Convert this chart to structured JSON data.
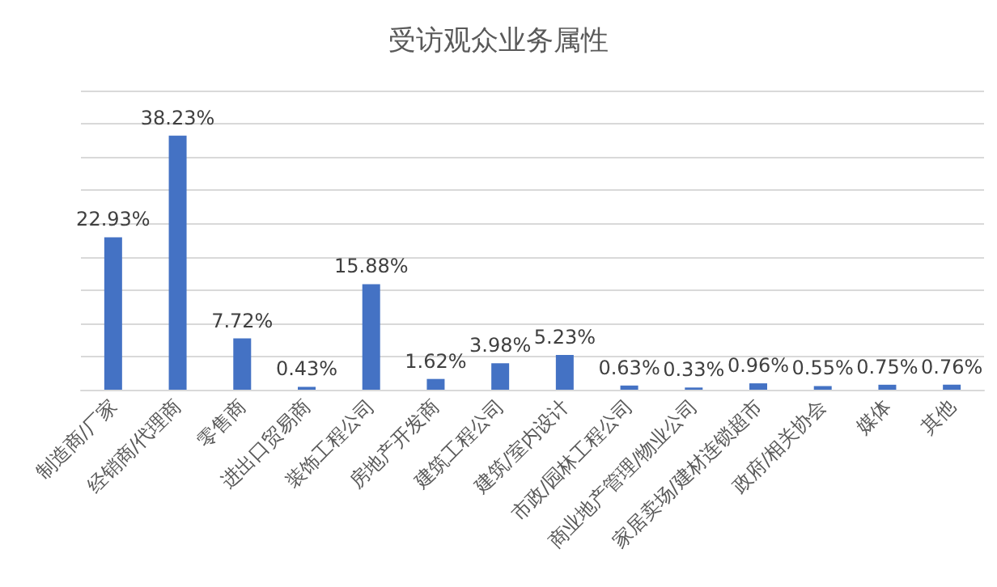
{
  "chart_data": {
    "type": "bar",
    "title": "受访观众业务属性",
    "categories": [
      "制造商/厂家",
      "经销商/代理商",
      "零售商",
      "进出口贸易商",
      "装饰工程公司",
      "房地产开发商",
      "建筑工程公司",
      "建筑/室内设计",
      "市政/园林工程公司",
      "商业地产管理/物业公司",
      "家居卖场/建材连锁超市",
      "政府/相关协会",
      "媒体",
      "其他"
    ],
    "values": [
      22.93,
      38.23,
      7.72,
      0.43,
      15.88,
      1.62,
      3.98,
      5.23,
      0.63,
      0.33,
      0.96,
      0.55,
      0.75,
      0.76
    ],
    "value_labels": [
      "22.93%",
      "38.23%",
      "7.72%",
      "0.43%",
      "15.88%",
      "1.62%",
      "3.98%",
      "5.23%",
      "0.63%",
      "0.33%",
      "0.96%",
      "0.55%",
      "0.75%",
      "0.76%"
    ],
    "color": "#4472c4",
    "ylim": [
      0,
      45
    ],
    "yticks": [
      {
        "value": 0,
        "label": null
      },
      {
        "value": 5,
        "label": null
      },
      {
        "value": 10,
        "label": null
      },
      {
        "value": 15,
        "label": null
      },
      {
        "value": 20,
        "label": null
      },
      {
        "value": 25,
        "label": null
      },
      {
        "value": 30,
        "label": null
      },
      {
        "value": 35,
        "label": null
      },
      {
        "value": 40,
        "label": null
      },
      {
        "value": 45,
        "label": null
      }
    ],
    "grid": "y",
    "tick_labels": "x"
  }
}
